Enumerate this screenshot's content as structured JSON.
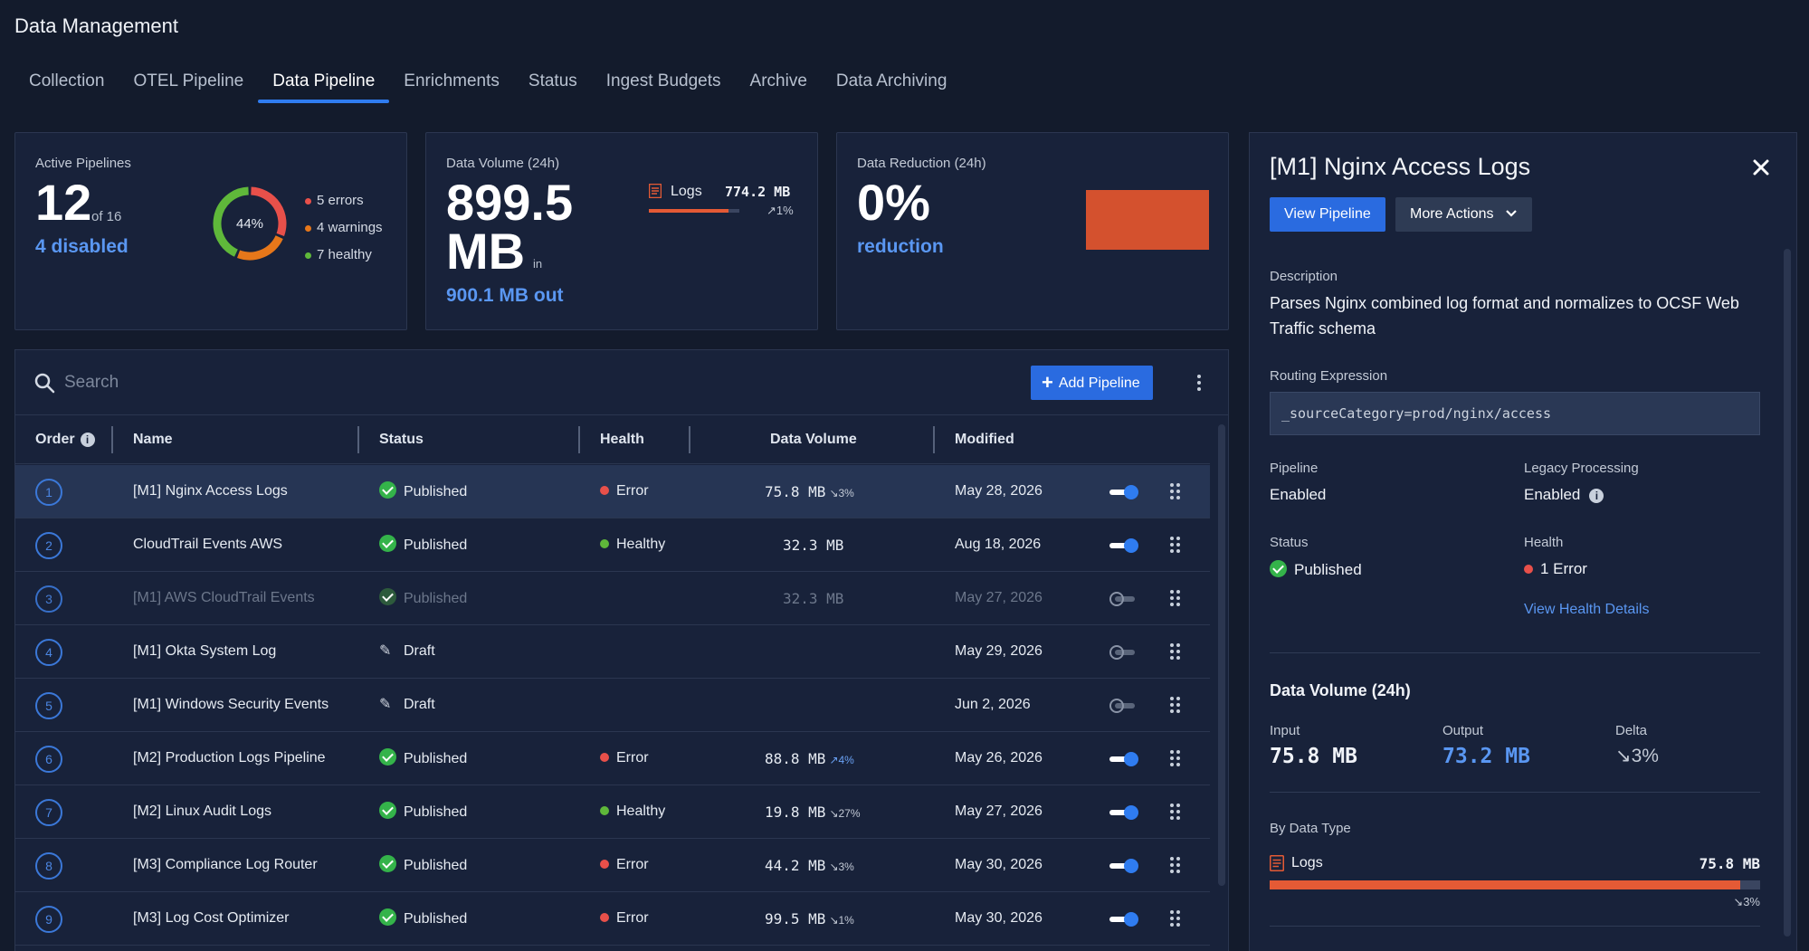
{
  "app": {
    "title": "Data Management"
  },
  "tabs": [
    "Collection",
    "OTEL Pipeline",
    "Data Pipeline",
    "Enrichments",
    "Status",
    "Ingest Budgets",
    "Archive",
    "Data Archiving"
  ],
  "active_tab": "Data Pipeline",
  "cards": {
    "active": {
      "label": "Active Pipelines",
      "count": "12",
      "of_total": "of 16",
      "disabled": "4 disabled",
      "donut_percent": "44%",
      "donut_segments": [
        {
          "name": "errors",
          "value": 5,
          "color": "#e8504a"
        },
        {
          "name": "warnings",
          "value": 4,
          "color": "#e6771a"
        },
        {
          "name": "healthy",
          "value": 7,
          "color": "#5fb83a"
        }
      ],
      "legend": [
        {
          "text": "5 errors",
          "color": "#e8504a"
        },
        {
          "text": "4 warnings",
          "color": "#e6771a"
        },
        {
          "text": "7 healthy",
          "color": "#5fb83a"
        }
      ]
    },
    "volume": {
      "label": "Data Volume (24h)",
      "value_line1": "899.5",
      "value_line2": "MB",
      "in_label": "in",
      "out": "900.1 MB out",
      "logs_label": "Logs",
      "logs_value": "774.2 MB",
      "logs_delta": "↗1%",
      "logs_fill": 0.88
    },
    "reduction": {
      "label": "Data Reduction (24h)",
      "value": "0%",
      "sub": "reduction",
      "block_color": "#d4512e"
    }
  },
  "toolbar": {
    "search_placeholder": "Search",
    "add_label": "Add Pipeline"
  },
  "table": {
    "headers": {
      "order": "Order",
      "name": "Name",
      "status": "Status",
      "health": "Health",
      "volume": "Data Volume",
      "modified": "Modified"
    },
    "rows": [
      {
        "order": "1",
        "name": "[M1] Nginx Access Logs",
        "status": "Published",
        "status_type": "published",
        "health": "Error",
        "health_color": "#e8504a",
        "volume": "75.8 MB",
        "delta": "↘3%",
        "delta_dir": "down",
        "modified": "May 28, 2026",
        "enabled": true,
        "selected": true,
        "muted": false
      },
      {
        "order": "2",
        "name": "CloudTrail Events AWS",
        "status": "Published",
        "status_type": "published",
        "health": "Healthy",
        "health_color": "#5fb83a",
        "volume": "32.3 MB",
        "delta": "",
        "delta_dir": "",
        "modified": "Aug 18, 2026",
        "enabled": true,
        "selected": false,
        "muted": false
      },
      {
        "order": "3",
        "name": "[M1] AWS CloudTrail Events",
        "status": "Published",
        "status_type": "published",
        "health": "",
        "health_color": "",
        "volume": "32.3 MB",
        "delta": "",
        "delta_dir": "",
        "modified": "May 27, 2026",
        "enabled": false,
        "selected": false,
        "muted": true
      },
      {
        "order": "4",
        "name": "[M1] Okta System Log",
        "status": "Draft",
        "status_type": "draft",
        "health": "",
        "health_color": "",
        "volume": "",
        "delta": "",
        "delta_dir": "",
        "modified": "May 29, 2026",
        "enabled": false,
        "selected": false,
        "muted": false
      },
      {
        "order": "5",
        "name": "[M1] Windows Security Events",
        "status": "Draft",
        "status_type": "draft",
        "health": "",
        "health_color": "",
        "volume": "",
        "delta": "",
        "delta_dir": "",
        "modified": "Jun 2, 2026",
        "enabled": false,
        "selected": false,
        "muted": false
      },
      {
        "order": "6",
        "name": "[M2] Production Logs Pipeline",
        "status": "Published",
        "status_type": "published",
        "health": "Error",
        "health_color": "#e8504a",
        "volume": "88.8 MB",
        "delta": "↗4%",
        "delta_dir": "up",
        "modified": "May 26, 2026",
        "enabled": true,
        "selected": false,
        "muted": false
      },
      {
        "order": "7",
        "name": "[M2] Linux Audit Logs",
        "status": "Published",
        "status_type": "published",
        "health": "Healthy",
        "health_color": "#5fb83a",
        "volume": "19.8 MB",
        "delta": "↘27%",
        "delta_dir": "down",
        "modified": "May 27, 2026",
        "enabled": true,
        "selected": false,
        "muted": false
      },
      {
        "order": "8",
        "name": "[M3] Compliance Log Router",
        "status": "Published",
        "status_type": "published",
        "health": "Error",
        "health_color": "#e8504a",
        "volume": "44.2 MB",
        "delta": "↘3%",
        "delta_dir": "down",
        "modified": "May 30, 2026",
        "enabled": true,
        "selected": false,
        "muted": false
      },
      {
        "order": "9",
        "name": "[M3] Log Cost Optimizer",
        "status": "Published",
        "status_type": "published",
        "health": "Error",
        "health_color": "#e8504a",
        "volume": "99.5 MB",
        "delta": "↘1%",
        "delta_dir": "down",
        "modified": "May 30, 2026",
        "enabled": true,
        "selected": false,
        "muted": false
      }
    ]
  },
  "detail": {
    "title": "[M1] Nginx Access Logs",
    "view_label": "View Pipeline",
    "more_label": "More Actions",
    "description_label": "Description",
    "description_line1": "Parses Nginx combined log format and normalizes to OCSF Web",
    "description_line2": "Traffic schema",
    "routing_label": "Routing Expression",
    "routing_value": "_sourceCategory=prod/nginx/access",
    "pipeline_label": "Pipeline",
    "pipeline_value": "Enabled",
    "legacy_label": "Legacy Processing",
    "legacy_value": "Enabled",
    "status_label": "Status",
    "status_value": "Published",
    "health_label": "Health",
    "health_value": "1 Error",
    "health_link": "View Health Details",
    "volume_title": "Data Volume (24h)",
    "input_label": "Input",
    "input_value": "75.8 MB",
    "output_label": "Output",
    "output_value": "73.2 MB",
    "delta_label": "Delta",
    "delta_value": "↘3%",
    "by_type_label": "By Data Type",
    "type_name": "Logs",
    "type_value": "75.8 MB",
    "type_delta": "↘3%",
    "type_fill": 0.96
  },
  "colors": {
    "accent": "#2a6be0",
    "link": "#5a97f2",
    "error": "#e8504a",
    "warning": "#e6771a",
    "healthy": "#5fb83a",
    "logs_bar": "#e45a35"
  }
}
